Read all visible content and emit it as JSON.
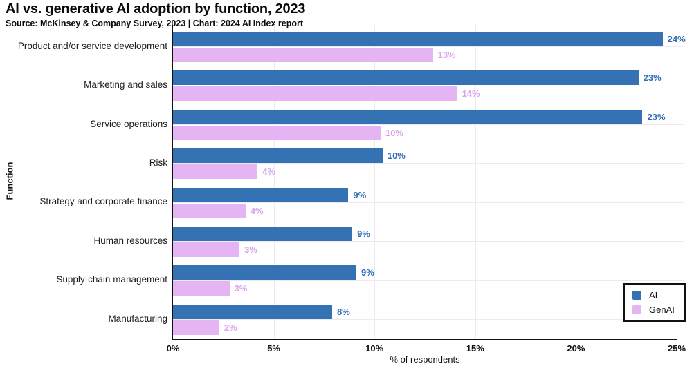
{
  "title": "AI vs. generative AI adoption by function, 2023",
  "subtitle": "Source: McKinsey & Company Survey, 2023 | Chart: 2024 AI Index report",
  "colors": {
    "ai": "#3572B3",
    "genai": "#E4B5F2",
    "ai_label": "#2E6CB3",
    "genai_label": "#D9A2EC",
    "grid": "#ECE9F2",
    "axis": "#111111"
  },
  "axes": {
    "x_label": "% of respondents",
    "y_label": "Function",
    "x_ticks": [
      "0%",
      "5%",
      "10%",
      "15%",
      "20%",
      "25%"
    ],
    "x_max": 25
  },
  "legend": {
    "items": [
      {
        "label": "AI",
        "color": "#3572B3"
      },
      {
        "label": "GenAI",
        "color": "#E4B5F2"
      }
    ]
  },
  "chart_data": {
    "type": "bar",
    "orientation": "horizontal",
    "title": "AI vs. generative AI adoption by function, 2023",
    "xlabel": "% of respondents",
    "ylabel": "Function",
    "xlim": [
      0,
      25
    ],
    "x_tick_step": 5,
    "grid": true,
    "legend_position": "lower right",
    "categories": [
      "Product and/or service development",
      "Marketing and sales",
      "Service operations",
      "Risk",
      "Strategy and corporate finance",
      "Human resources",
      "Supply-chain management",
      "Manufacturing"
    ],
    "series": [
      {
        "name": "AI",
        "values": [
          24,
          23,
          23,
          10,
          9,
          9,
          9,
          8
        ],
        "labels": [
          "24%",
          "23%",
          "23%",
          "10%",
          "9%",
          "9%",
          "9%",
          "8%"
        ],
        "bar_lengths_pct": [
          24.3,
          23.1,
          23.3,
          10.4,
          8.7,
          8.9,
          9.1,
          7.9
        ]
      },
      {
        "name": "GenAI",
        "values": [
          13,
          14,
          10,
          4,
          4,
          3,
          3,
          2
        ],
        "labels": [
          "13%",
          "14%",
          "10%",
          "4%",
          "4%",
          "3%",
          "3%",
          "2%"
        ],
        "bar_lengths_pct": [
          12.9,
          14.1,
          10.3,
          4.2,
          3.6,
          3.3,
          2.8,
          2.3
        ]
      }
    ]
  }
}
